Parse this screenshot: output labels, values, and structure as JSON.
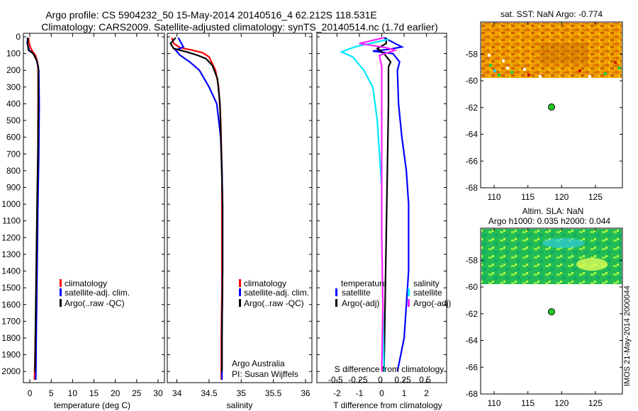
{
  "title": {
    "line1": "Argo profile: CS 5904232_50 15-May-2014 20140516_4 62.212S 118.531E",
    "line2": "Climatology: CARS2009. Satellite-adjusted climatology: synTS_20140514.nc (1.7d earlier)"
  },
  "side_label": "IMOS 21-May-2014 2000044",
  "colors": {
    "red": "#ff0000",
    "blue": "#0000ff",
    "black": "#000000",
    "cyan": "#00e8ff",
    "magenta": "#ff22ff",
    "dot": "#22cc22"
  },
  "chart_data": [
    {
      "id": "temperature",
      "type": "line",
      "xlabel": "temperature (deg C)",
      "ylabel": "",
      "xlim": [
        -1.5,
        31.5
      ],
      "ylim": [
        0,
        2050
      ],
      "y_inverted": true,
      "xticks": [
        0,
        5,
        10,
        15,
        20,
        25,
        30
      ],
      "yticks": [
        0,
        100,
        200,
        300,
        400,
        500,
        600,
        700,
        800,
        900,
        1000,
        1100,
        1200,
        1300,
        1400,
        1500,
        1600,
        1700,
        1800,
        1900,
        2000
      ],
      "legend": [
        "climatology",
        "satellite-adj. clim.",
        "Argo(..raw -QC)"
      ],
      "series": [
        {
          "name": "climatology",
          "color": "red",
          "points": [
            [
              -0.3,
              5
            ],
            [
              -0.2,
              30
            ],
            [
              0.1,
              60
            ],
            [
              0.6,
              85
            ],
            [
              1.3,
              110
            ],
            [
              1.8,
              150
            ],
            [
              1.95,
              200
            ],
            [
              1.95,
              400
            ],
            [
              1.9,
              700
            ],
            [
              1.8,
              1000
            ],
            [
              1.6,
              1400
            ],
            [
              1.3,
              1800
            ],
            [
              1.1,
              2050
            ]
          ]
        },
        {
          "name": "satellite-adj. clim.",
          "color": "blue",
          "points": [
            [
              -0.5,
              5
            ],
            [
              -0.6,
              40
            ],
            [
              -0.1,
              80
            ],
            [
              0.8,
              100
            ],
            [
              1.6,
              140
            ],
            [
              2.1,
              200
            ],
            [
              2.2,
              400
            ],
            [
              2.1,
              700
            ],
            [
              1.9,
              1000
            ],
            [
              1.7,
              1400
            ],
            [
              1.5,
              1800
            ],
            [
              1.4,
              2050
            ]
          ]
        },
        {
          "name": "Argo(..raw -QC)",
          "color": "black",
          "points": [
            [
              -0.4,
              5
            ],
            [
              -0.5,
              40
            ],
            [
              -0.3,
              80
            ],
            [
              0.8,
              100
            ],
            [
              1.6,
              140
            ],
            [
              2.0,
              180
            ],
            [
              2.0,
              400
            ],
            [
              1.9,
              700
            ],
            [
              1.7,
              1000
            ],
            [
              1.5,
              1400
            ],
            [
              1.3,
              1800
            ],
            [
              1.2,
              2000
            ]
          ]
        }
      ]
    },
    {
      "id": "salinity",
      "type": "line",
      "xlabel": "salinity",
      "xlim": [
        33.85,
        36.1
      ],
      "ylim": [
        0,
        2050
      ],
      "y_inverted": true,
      "xticks": [
        34,
        34.5,
        35,
        35.5,
        36
      ],
      "legend": [
        "climatology",
        "satellite-adj. clim.",
        "Argo(..raw -QC)"
      ],
      "annotation": [
        "Argo Australia",
        "PI: Susan Wijffels"
      ],
      "series": [
        {
          "name": "climatology",
          "color": "red",
          "points": [
            [
              33.92,
              5
            ],
            [
              33.95,
              40
            ],
            [
              34.05,
              65
            ],
            [
              34.25,
              80
            ],
            [
              34.4,
              95
            ],
            [
              34.5,
              120
            ],
            [
              34.6,
              200
            ],
            [
              34.65,
              300
            ],
            [
              34.68,
              500
            ],
            [
              34.7,
              800
            ],
            [
              34.7,
              1100
            ],
            [
              34.7,
              1500
            ],
            [
              34.69,
              1800
            ],
            [
              34.69,
              2050
            ]
          ]
        },
        {
          "name": "satellite-adj. clim.",
          "color": "blue",
          "points": [
            [
              34.02,
              5
            ],
            [
              34.1,
              60
            ],
            [
              33.98,
              80
            ],
            [
              34.05,
              110
            ],
            [
              34.2,
              150
            ],
            [
              34.35,
              200
            ],
            [
              34.5,
              300
            ],
            [
              34.62,
              400
            ],
            [
              34.68,
              600
            ],
            [
              34.7,
              800
            ],
            [
              34.71,
              1000
            ],
            [
              34.71,
              1400
            ],
            [
              34.7,
              1800
            ],
            [
              34.7,
              2050
            ]
          ]
        },
        {
          "name": "Argo(..raw -QC)",
          "color": "black",
          "points": [
            [
              33.98,
              5
            ],
            [
              33.9,
              40
            ],
            [
              33.95,
              70
            ],
            [
              34.15,
              90
            ],
            [
              34.32,
              110
            ],
            [
              34.45,
              130
            ],
            [
              34.55,
              170
            ],
            [
              34.63,
              250
            ],
            [
              34.67,
              400
            ],
            [
              34.69,
              700
            ],
            [
              34.71,
              1000
            ],
            [
              34.71,
              1400
            ],
            [
              34.7,
              1800
            ],
            [
              34.7,
              2000
            ]
          ]
        }
      ]
    },
    {
      "id": "difference",
      "type": "line",
      "xlabel": "T difference from climatology",
      "top_label": "S difference from climatology",
      "xlim": [
        -2.9,
        2.9
      ],
      "ylim": [
        0,
        2050
      ],
      "y_inverted": true,
      "xticks": [
        -2,
        -1,
        0,
        1,
        2
      ],
      "secondary_xticks": [
        "-0.5",
        "-0.25",
        "0",
        "0.25",
        "0.5"
      ],
      "legend_headers": [
        "temperature",
        "salinity"
      ],
      "legend": [
        "satellite",
        "Argo(-adj)",
        "satellite",
        "Argo(-adj)"
      ],
      "series": [
        {
          "name": "temperature satellite",
          "color": "blue",
          "points": [
            [
              0.1,
              5
            ],
            [
              0.9,
              60
            ],
            [
              0.3,
              75
            ],
            [
              -0.4,
              85
            ],
            [
              0.5,
              100
            ],
            [
              0.8,
              150
            ],
            [
              0.7,
              200
            ],
            [
              0.75,
              400
            ],
            [
              0.9,
              600
            ],
            [
              1.1,
              800
            ],
            [
              1.2,
              1000
            ],
            [
              1.2,
              1400
            ],
            [
              1.0,
              1800
            ],
            [
              0.7,
              2000
            ]
          ]
        },
        {
          "name": "temperature Argo(-adj)",
          "color": "black",
          "points": [
            [
              0.2,
              5
            ],
            [
              0.2,
              40
            ],
            [
              -0.2,
              70
            ],
            [
              0.1,
              100
            ],
            [
              0.4,
              150
            ],
            [
              0.3,
              180
            ],
            [
              0.3,
              400
            ],
            [
              0.25,
              800
            ],
            [
              0.2,
              1200
            ],
            [
              0.15,
              1600
            ],
            [
              0.1,
              2000
            ]
          ]
        },
        {
          "name": "salinity satellite",
          "color": "cyan",
          "points": [
            [
              0.3,
              15
            ],
            [
              -1.2,
              60
            ],
            [
              -1.8,
              90
            ],
            [
              -1.3,
              120
            ],
            [
              -0.8,
              200
            ],
            [
              -0.4,
              300
            ],
            [
              -0.2,
              500
            ],
            [
              -0.1,
              700
            ],
            [
              0.0,
              900
            ],
            [
              0.0,
              1200
            ],
            [
              0.05,
              1600
            ],
            [
              0.1,
              2000
            ]
          ]
        },
        {
          "name": "salinity Argo(-adj)",
          "color": "magenta",
          "points": [
            [
              0.1,
              5
            ],
            [
              -1.0,
              40
            ],
            [
              0.2,
              65
            ],
            [
              0.6,
              80
            ],
            [
              -0.1,
              110
            ],
            [
              0.0,
              180
            ],
            [
              0.0,
              400
            ],
            [
              0.0,
              800
            ],
            [
              0.0,
              1200
            ],
            [
              0.05,
              1600
            ],
            [
              0.0,
              2000
            ]
          ]
        }
      ]
    },
    {
      "id": "sst_map",
      "type": "heatmap",
      "title": "sat. SST: NaN Argo: -0.774",
      "xlim": [
        108,
        129
      ],
      "ylim": [
        -68,
        -55.6
      ],
      "xticks": [
        110,
        115,
        120,
        125
      ],
      "yticks": [
        -58,
        -60,
        -62,
        -64,
        -66,
        -68
      ],
      "argo_position": {
        "lon": 118.5,
        "lat": -62.2
      }
    },
    {
      "id": "sla_map",
      "type": "heatmap",
      "title": "Altim. SLA: NaN",
      "subtitle": "Argo h1000: 0.035 h2000: 0.044",
      "xlim": [
        108,
        129
      ],
      "ylim": [
        -68,
        -55.6
      ],
      "xticks": [
        110,
        115,
        120,
        125
      ],
      "yticks": [
        -58,
        -60,
        -62,
        -64,
        -66,
        -68
      ],
      "argo_position": {
        "lon": 118.5,
        "lat": -62.2
      }
    }
  ]
}
